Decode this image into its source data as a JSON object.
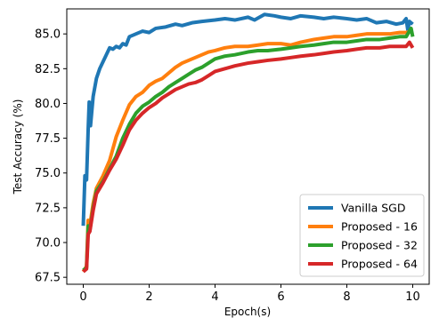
{
  "chart_data": {
    "type": "line",
    "xlabel": "Epoch(s)",
    "ylabel": "Test Accuracy (%)",
    "xlim": [
      -0.5,
      10.5
    ],
    "ylim": [
      67.0,
      86.8
    ],
    "x_ticks": [
      0,
      2,
      4,
      6,
      8,
      10
    ],
    "y_ticks": [
      67.5,
      70.0,
      72.5,
      75.0,
      77.5,
      80.0,
      82.5,
      85.0
    ],
    "x_tick_labels": [
      "0",
      "2",
      "4",
      "6",
      "8",
      "10"
    ],
    "y_tick_labels": [
      "67.5",
      "70.0",
      "72.5",
      "75.0",
      "77.5",
      "80.0",
      "82.5",
      "85.0"
    ],
    "grid": false,
    "legend_position": "lower-right",
    "series": [
      {
        "name": "Vanilla SGD",
        "color": "#1f77b4",
        "points": [
          [
            0.0,
            71.2
          ],
          [
            0.05,
            74.8
          ],
          [
            0.1,
            74.5
          ],
          [
            0.15,
            78.2
          ],
          [
            0.18,
            80.1
          ],
          [
            0.22,
            78.4
          ],
          [
            0.3,
            80.5
          ],
          [
            0.4,
            81.8
          ],
          [
            0.5,
            82.5
          ],
          [
            0.6,
            83.0
          ],
          [
            0.7,
            83.5
          ],
          [
            0.8,
            84.0
          ],
          [
            0.9,
            83.9
          ],
          [
            1.0,
            84.1
          ],
          [
            1.1,
            84.0
          ],
          [
            1.2,
            84.3
          ],
          [
            1.3,
            84.2
          ],
          [
            1.4,
            84.8
          ],
          [
            1.6,
            85.0
          ],
          [
            1.8,
            85.2
          ],
          [
            2.0,
            85.1
          ],
          [
            2.2,
            85.4
          ],
          [
            2.5,
            85.5
          ],
          [
            2.8,
            85.7
          ],
          [
            3.0,
            85.6
          ],
          [
            3.3,
            85.8
          ],
          [
            3.6,
            85.9
          ],
          [
            4.0,
            86.0
          ],
          [
            4.3,
            86.1
          ],
          [
            4.6,
            86.0
          ],
          [
            5.0,
            86.2
          ],
          [
            5.2,
            86.0
          ],
          [
            5.5,
            86.4
          ],
          [
            5.8,
            86.3
          ],
          [
            6.0,
            86.2
          ],
          [
            6.3,
            86.1
          ],
          [
            6.6,
            86.3
          ],
          [
            7.0,
            86.2
          ],
          [
            7.3,
            86.1
          ],
          [
            7.6,
            86.2
          ],
          [
            8.0,
            86.1
          ],
          [
            8.3,
            86.0
          ],
          [
            8.6,
            86.1
          ],
          [
            8.9,
            85.8
          ],
          [
            9.2,
            85.9
          ],
          [
            9.5,
            85.7
          ],
          [
            9.7,
            85.8
          ],
          [
            9.8,
            86.1
          ],
          [
            9.85,
            85.3
          ],
          [
            9.9,
            85.9
          ],
          [
            10.0,
            85.7
          ]
        ]
      },
      {
        "name": "Proposed - 16",
        "color": "#ff7f0e",
        "points": [
          [
            0.0,
            67.9
          ],
          [
            0.1,
            68.3
          ],
          [
            0.15,
            71.6
          ],
          [
            0.2,
            71.2
          ],
          [
            0.3,
            72.8
          ],
          [
            0.4,
            73.9
          ],
          [
            0.6,
            74.8
          ],
          [
            0.8,
            75.9
          ],
          [
            1.0,
            77.6
          ],
          [
            1.2,
            78.8
          ],
          [
            1.4,
            79.9
          ],
          [
            1.6,
            80.5
          ],
          [
            1.8,
            80.8
          ],
          [
            2.0,
            81.3
          ],
          [
            2.2,
            81.6
          ],
          [
            2.4,
            81.8
          ],
          [
            2.6,
            82.2
          ],
          [
            2.8,
            82.6
          ],
          [
            3.0,
            82.9
          ],
          [
            3.2,
            83.1
          ],
          [
            3.4,
            83.3
          ],
          [
            3.6,
            83.5
          ],
          [
            3.8,
            83.7
          ],
          [
            4.0,
            83.8
          ],
          [
            4.3,
            84.0
          ],
          [
            4.6,
            84.1
          ],
          [
            5.0,
            84.1
          ],
          [
            5.3,
            84.2
          ],
          [
            5.6,
            84.3
          ],
          [
            6.0,
            84.3
          ],
          [
            6.3,
            84.2
          ],
          [
            6.6,
            84.4
          ],
          [
            7.0,
            84.6
          ],
          [
            7.3,
            84.7
          ],
          [
            7.6,
            84.8
          ],
          [
            8.0,
            84.8
          ],
          [
            8.3,
            84.9
          ],
          [
            8.6,
            85.0
          ],
          [
            9.0,
            85.0
          ],
          [
            9.3,
            85.0
          ],
          [
            9.6,
            85.1
          ],
          [
            9.8,
            85.1
          ],
          [
            10.0,
            85.2
          ]
        ]
      },
      {
        "name": "Proposed - 32",
        "color": "#2ca02c",
        "points": [
          [
            0.0,
            68.0
          ],
          [
            0.1,
            68.2
          ],
          [
            0.15,
            71.2
          ],
          [
            0.2,
            70.9
          ],
          [
            0.3,
            72.5
          ],
          [
            0.4,
            73.7
          ],
          [
            0.6,
            74.4
          ],
          [
            0.8,
            75.3
          ],
          [
            1.0,
            76.2
          ],
          [
            1.2,
            77.5
          ],
          [
            1.4,
            78.5
          ],
          [
            1.6,
            79.3
          ],
          [
            1.8,
            79.8
          ],
          [
            2.0,
            80.1
          ],
          [
            2.2,
            80.5
          ],
          [
            2.4,
            80.8
          ],
          [
            2.6,
            81.2
          ],
          [
            2.8,
            81.5
          ],
          [
            3.0,
            81.8
          ],
          [
            3.2,
            82.1
          ],
          [
            3.4,
            82.4
          ],
          [
            3.6,
            82.6
          ],
          [
            3.8,
            82.9
          ],
          [
            4.0,
            83.2
          ],
          [
            4.3,
            83.4
          ],
          [
            4.6,
            83.5
          ],
          [
            5.0,
            83.7
          ],
          [
            5.3,
            83.8
          ],
          [
            5.6,
            83.8
          ],
          [
            6.0,
            83.9
          ],
          [
            6.3,
            84.0
          ],
          [
            6.6,
            84.1
          ],
          [
            7.0,
            84.2
          ],
          [
            7.3,
            84.3
          ],
          [
            7.6,
            84.4
          ],
          [
            8.0,
            84.4
          ],
          [
            8.3,
            84.5
          ],
          [
            8.6,
            84.6
          ],
          [
            9.0,
            84.6
          ],
          [
            9.3,
            84.7
          ],
          [
            9.6,
            84.8
          ],
          [
            9.8,
            84.8
          ],
          [
            9.95,
            85.4
          ],
          [
            10.0,
            84.8
          ]
        ]
      },
      {
        "name": "Proposed - 64",
        "color": "#d62728",
        "points": [
          [
            0.0,
            67.9
          ],
          [
            0.1,
            68.1
          ],
          [
            0.15,
            70.6
          ],
          [
            0.2,
            70.8
          ],
          [
            0.3,
            72.3
          ],
          [
            0.4,
            73.5
          ],
          [
            0.6,
            74.3
          ],
          [
            0.8,
            75.2
          ],
          [
            1.0,
            76.0
          ],
          [
            1.2,
            77.0
          ],
          [
            1.4,
            78.1
          ],
          [
            1.6,
            78.8
          ],
          [
            1.8,
            79.3
          ],
          [
            2.0,
            79.7
          ],
          [
            2.2,
            80.0
          ],
          [
            2.4,
            80.4
          ],
          [
            2.6,
            80.7
          ],
          [
            2.8,
            81.0
          ],
          [
            3.0,
            81.2
          ],
          [
            3.2,
            81.4
          ],
          [
            3.4,
            81.5
          ],
          [
            3.6,
            81.7
          ],
          [
            3.8,
            82.0
          ],
          [
            4.0,
            82.3
          ],
          [
            4.3,
            82.5
          ],
          [
            4.6,
            82.7
          ],
          [
            5.0,
            82.9
          ],
          [
            5.3,
            83.0
          ],
          [
            5.6,
            83.1
          ],
          [
            6.0,
            83.2
          ],
          [
            6.3,
            83.3
          ],
          [
            6.6,
            83.4
          ],
          [
            7.0,
            83.5
          ],
          [
            7.3,
            83.6
          ],
          [
            7.6,
            83.7
          ],
          [
            8.0,
            83.8
          ],
          [
            8.3,
            83.9
          ],
          [
            8.6,
            84.0
          ],
          [
            9.0,
            84.0
          ],
          [
            9.3,
            84.1
          ],
          [
            9.6,
            84.1
          ],
          [
            9.8,
            84.1
          ],
          [
            9.9,
            84.4
          ],
          [
            10.0,
            84.0
          ]
        ]
      }
    ]
  }
}
